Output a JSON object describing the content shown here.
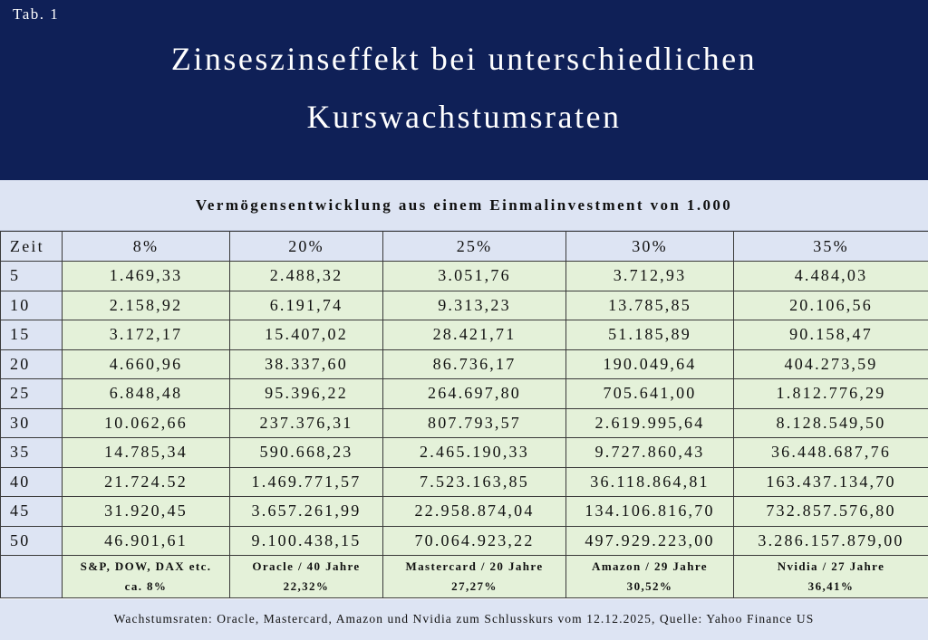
{
  "tab_label": "Tab. 1",
  "title_line1": "Zinseszinseffekt bei unterschiedlichen",
  "title_line2": "Kurswachstumsraten",
  "subtitle": "Vermögensentwicklung aus einem Einmalinvestment von 1.000",
  "table": {
    "columns": [
      "Zeit",
      "8%",
      "20%",
      "25%",
      "30%",
      "35%"
    ],
    "rows": [
      [
        "5",
        "1.469,33",
        "2.488,32",
        "3.051,76",
        "3.712,93",
        "4.484,03"
      ],
      [
        "10",
        "2.158,92",
        "6.191,74",
        "9.313,23",
        "13.785,85",
        "20.106,56"
      ],
      [
        "15",
        "3.172,17",
        "15.407,02",
        "28.421,71",
        "51.185,89",
        "90.158,47"
      ],
      [
        "20",
        "4.660,96",
        "38.337,60",
        "86.736,17",
        "190.049,64",
        "404.273,59"
      ],
      [
        "25",
        "6.848,48",
        "95.396,22",
        "264.697,80",
        "705.641,00",
        "1.812.776,29"
      ],
      [
        "30",
        "10.062,66",
        "237.376,31",
        "807.793,57",
        "2.619.995,64",
        "8.128.549,50"
      ],
      [
        "35",
        "14.785,34",
        "590.668,23",
        "2.465.190,33",
        "9.727.860,43",
        "36.448.687,76"
      ],
      [
        "40",
        "21.724.52",
        "1.469.771,57",
        "7.523.163,85",
        "36.118.864,81",
        "163.437.134,70"
      ],
      [
        "45",
        "31.920,45",
        "3.657.261,99",
        "22.958.874,04",
        "134.106.816,70",
        "732.857.576,80"
      ],
      [
        "50",
        "46.901,61",
        "9.100.438,15",
        "70.064.923,22",
        "497.929.223,00",
        "3.286.157.879,00"
      ]
    ],
    "notes": [
      {
        "line1": "S&P, DOW, DAX etc.",
        "line2": "ca. 8%"
      },
      {
        "line1": "Oracle / 40 Jahre",
        "line2": "22,32%"
      },
      {
        "line1": "Mastercard / 20 Jahre",
        "line2": "27,27%"
      },
      {
        "line1": "Amazon / 29 Jahre",
        "line2": "30,52%"
      },
      {
        "line1": "Nvidia / 27 Jahre",
        "line2": "36,41%"
      }
    ]
  },
  "source": "Wachstumsraten: Oracle, Mastercard, Amazon und Nvidia zum Schlusskurs vom 12.12.2025, Quelle: Yahoo Finance US",
  "colors": {
    "header_bg": "#0f2057",
    "band_bg": "#dde4f3",
    "cell_bg": "#e4f1d9"
  }
}
